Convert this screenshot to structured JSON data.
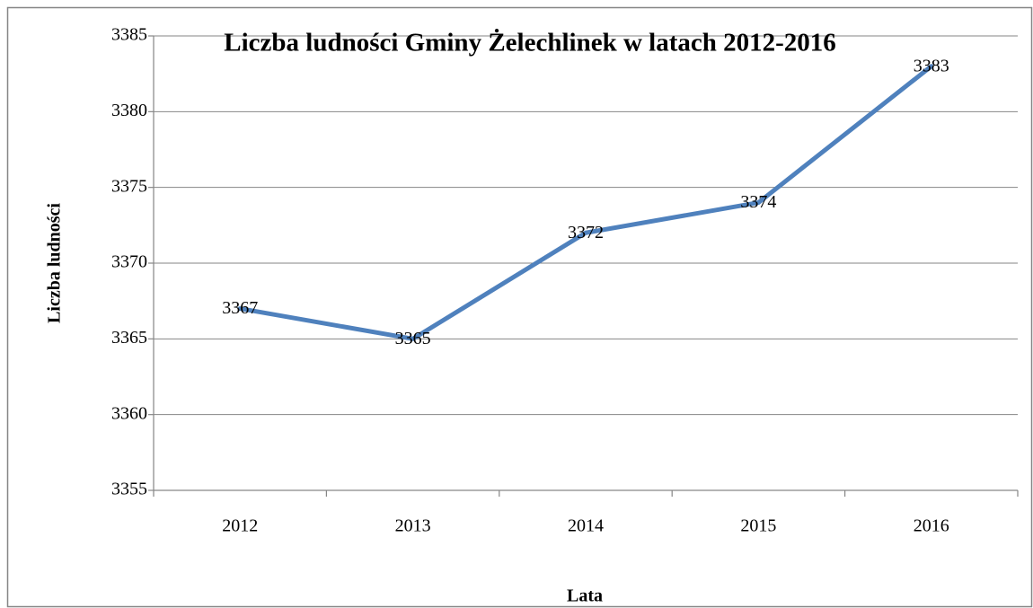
{
  "chart_data": {
    "type": "line",
    "title": "Liczba ludności Gminy Żelechlinek w latach 2012-2016",
    "x_label": "Lata",
    "y_label": "Liczba ludności",
    "categories": [
      "2012",
      "2013",
      "2014",
      "2015",
      "2016"
    ],
    "series": [
      {
        "name": "Liczba ludności",
        "color": "#4f81bd",
        "values": [
          3367,
          3365,
          3372,
          3374,
          3383
        ]
      }
    ],
    "ylim": [
      3355,
      3385
    ],
    "yticks": [
      3355,
      3360,
      3365,
      3370,
      3375,
      3380,
      3385
    ],
    "grid": true
  }
}
